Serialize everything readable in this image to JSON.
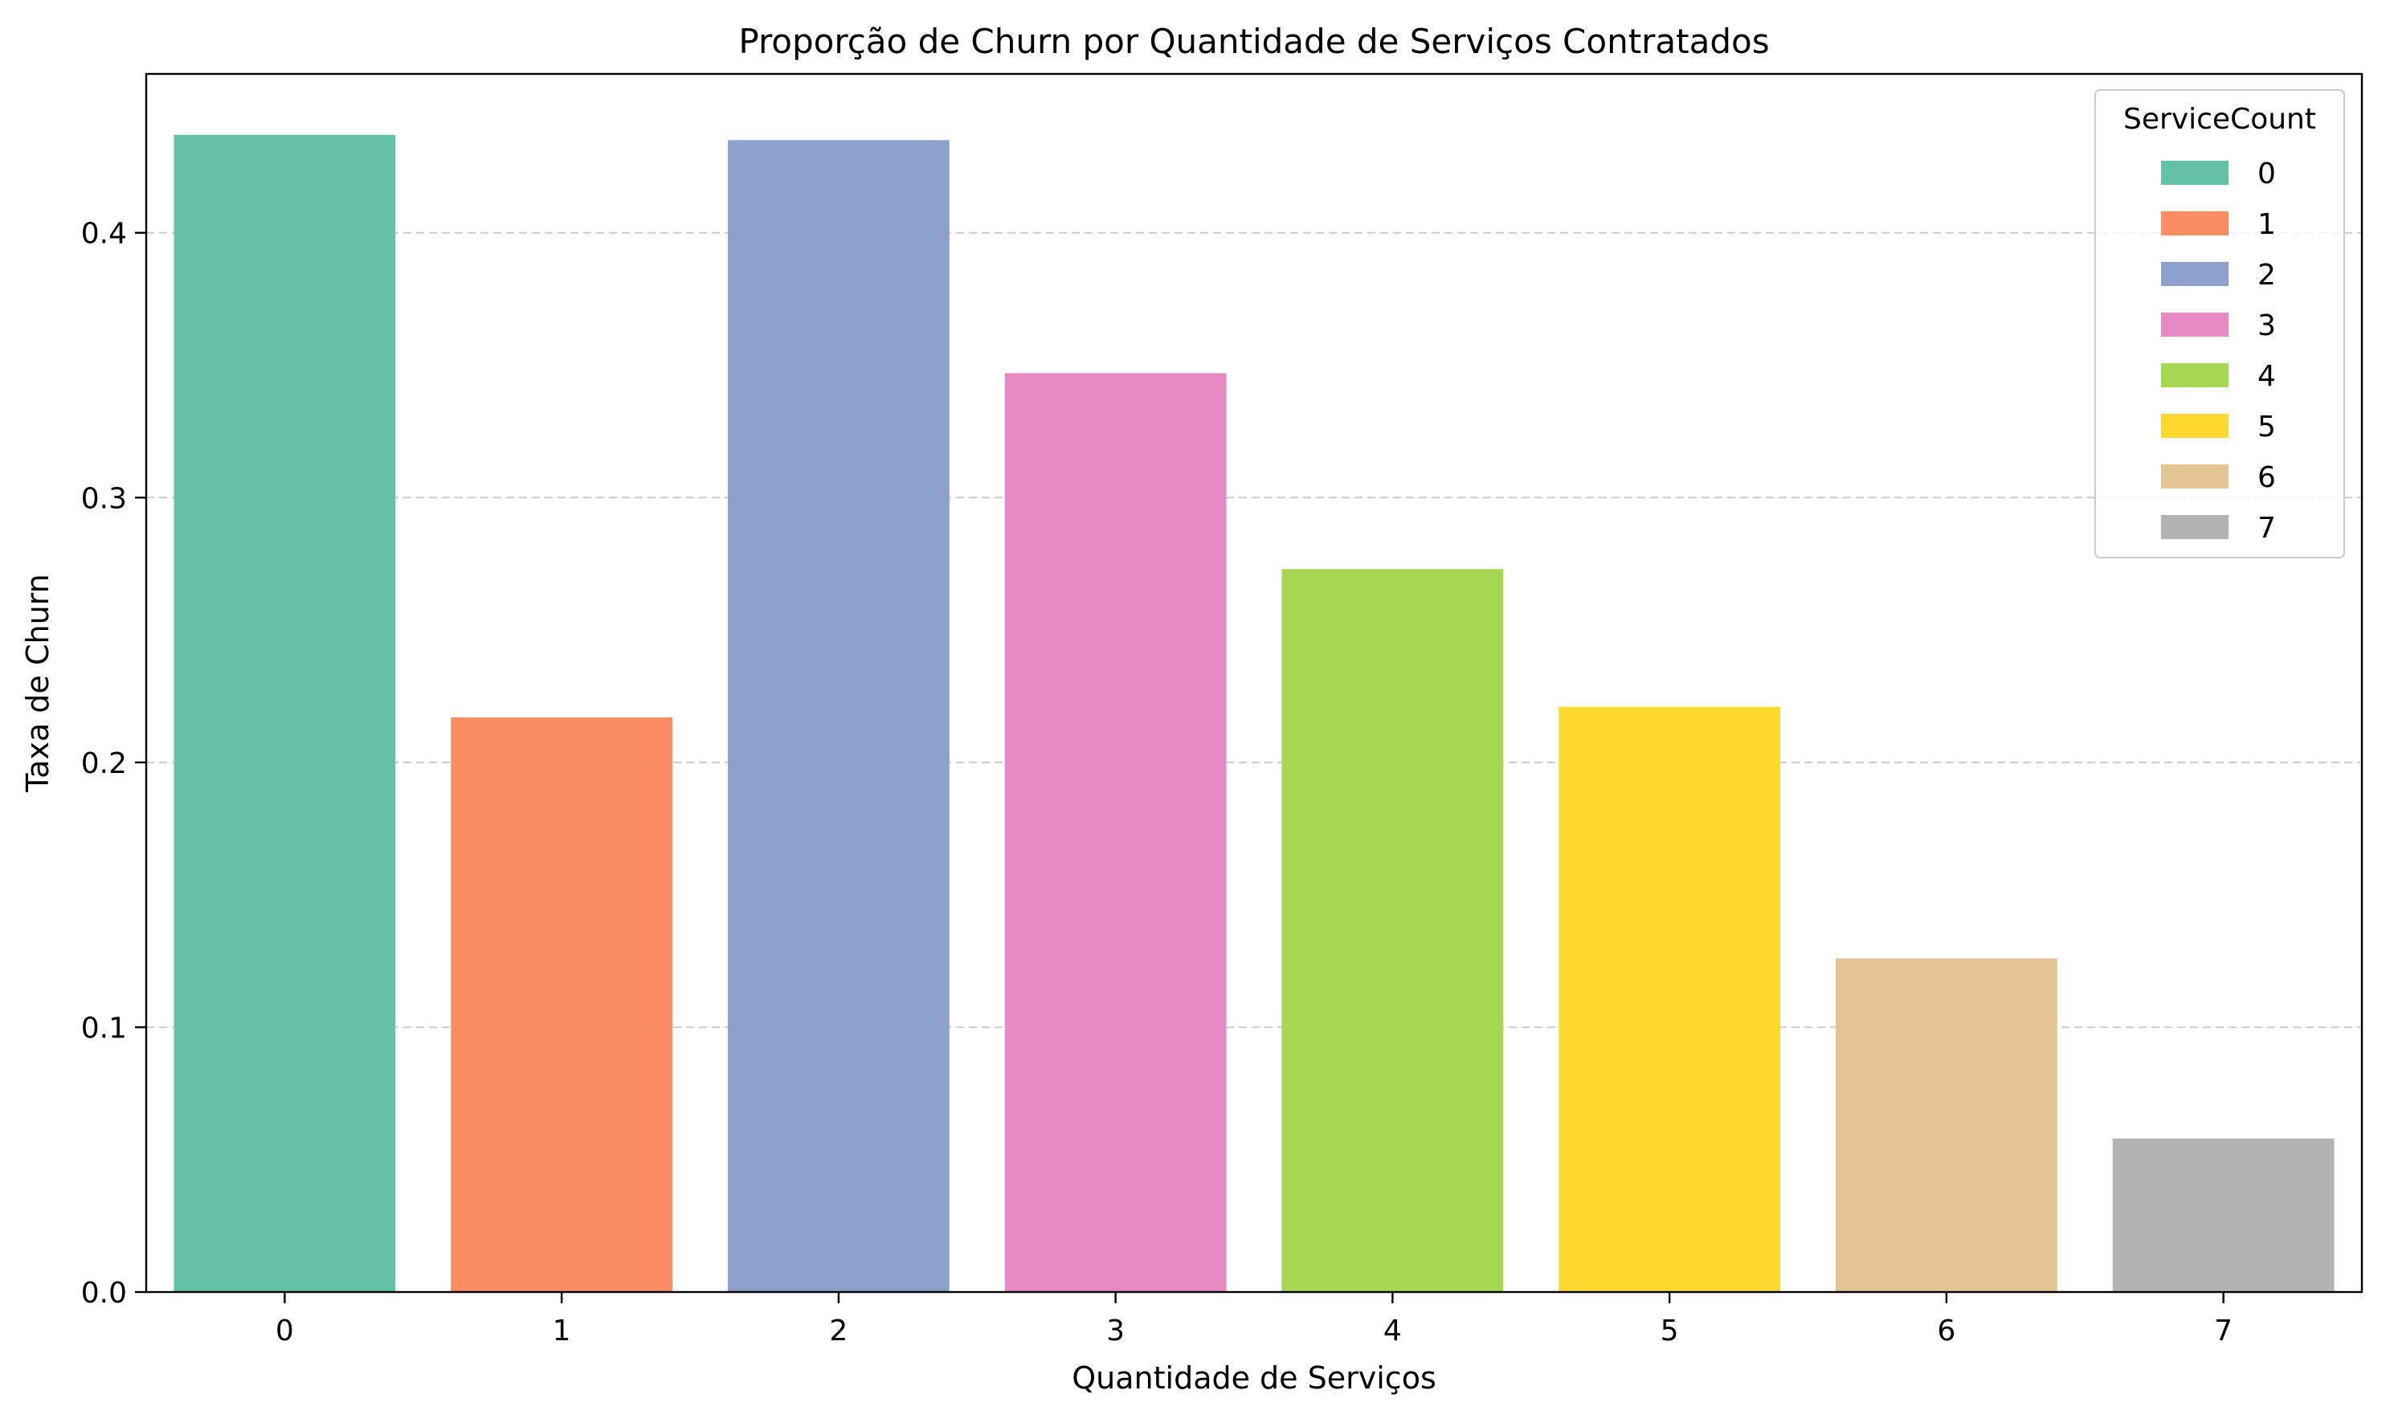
{
  "chart_data": {
    "type": "bar",
    "title": "Proporção de Churn por Quantidade de Serviços Contratados",
    "xlabel": "Quantidade de Serviços",
    "ylabel": "Taxa de Churn",
    "categories": [
      "0",
      "1",
      "2",
      "3",
      "4",
      "5",
      "6",
      "7"
    ],
    "values": [
      0.437,
      0.217,
      0.435,
      0.347,
      0.273,
      0.221,
      0.126,
      0.058
    ],
    "colors": [
      "#66c2a5",
      "#fc8d62",
      "#8da0cb",
      "#e78ac3",
      "#a6d854",
      "#ffd92f",
      "#e5c494",
      "#b3b3b3"
    ],
    "ylim": [
      0,
      0.46
    ],
    "yticks": [
      0.0,
      0.1,
      0.2,
      0.3,
      0.4
    ],
    "ytick_labels": [
      "0.0",
      "0.1",
      "0.2",
      "0.3",
      "0.4"
    ],
    "grid": {
      "axis": "y",
      "style": "dashed",
      "color": "#cccccc"
    },
    "legend": {
      "title": "ServiceCount",
      "position": "top-right",
      "entries": [
        "0",
        "1",
        "2",
        "3",
        "4",
        "5",
        "6",
        "7"
      ]
    }
  }
}
